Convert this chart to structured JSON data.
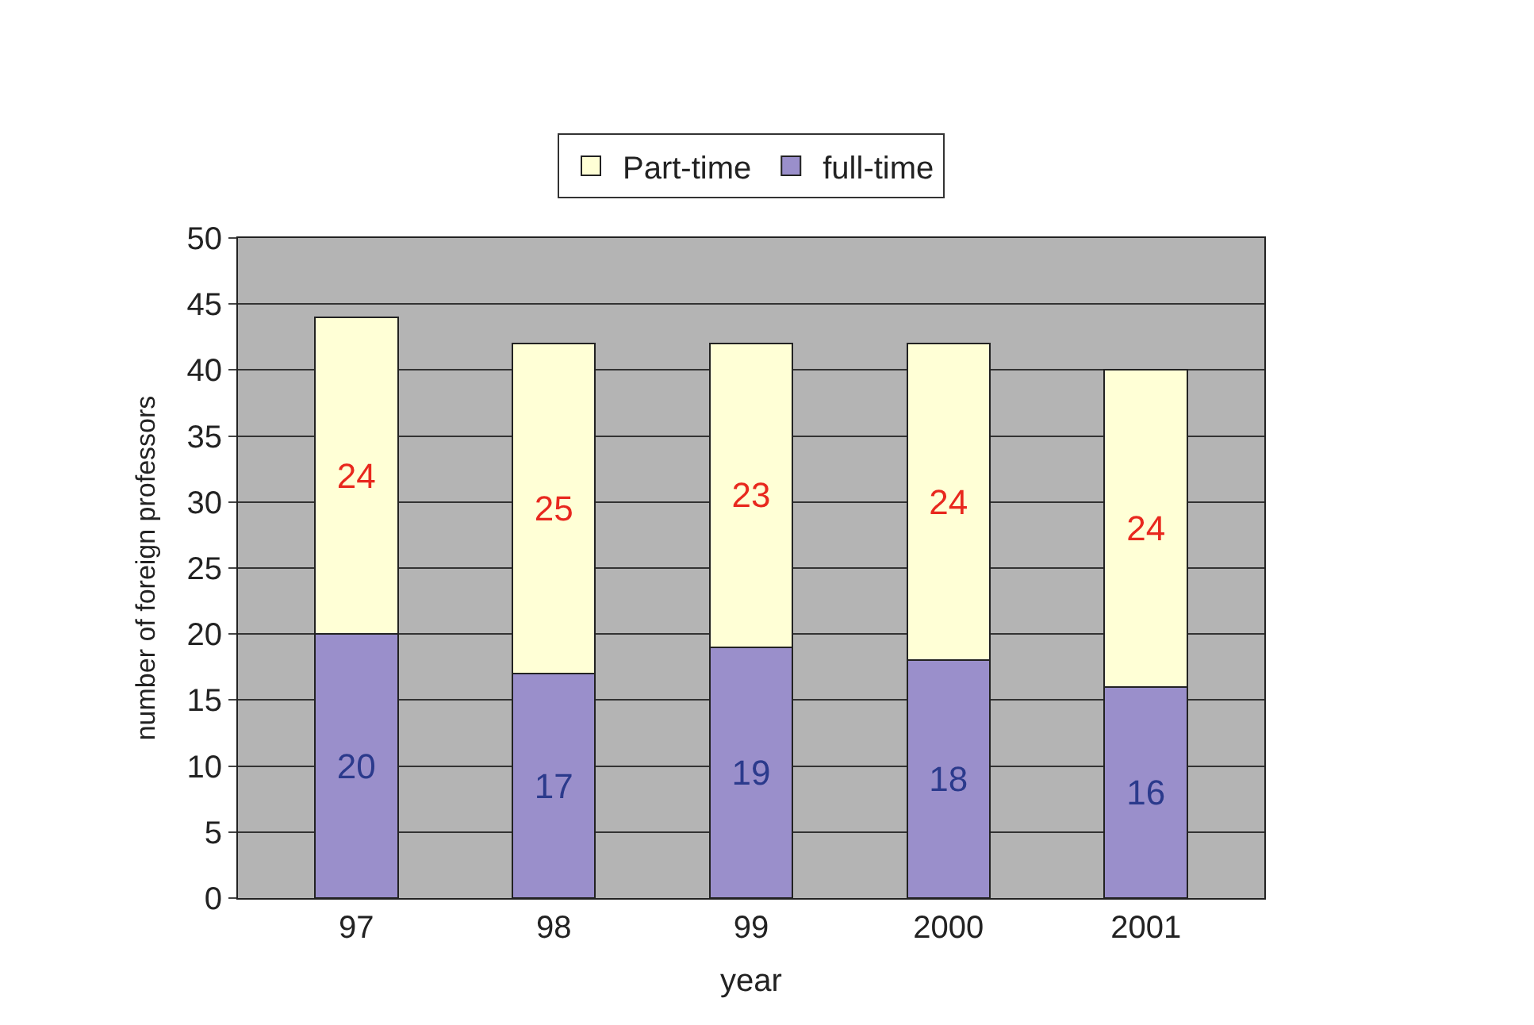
{
  "chart_data": {
    "type": "bar",
    "stacked": true,
    "xlabel": "year",
    "ylabel": "number of foreign professors",
    "categories": [
      "97",
      "98",
      "99",
      "2000",
      "2001"
    ],
    "series": [
      {
        "name": "full-time",
        "color": "#9a8fcb",
        "values": [
          20,
          17,
          19,
          18,
          16
        ]
      },
      {
        "name": "Part-time",
        "color": "#ffffd6",
        "values": [
          24,
          25,
          23,
          24,
          24
        ]
      }
    ],
    "ylim": [
      0,
      50
    ],
    "yticks": [
      0,
      5,
      10,
      15,
      20,
      25,
      30,
      35,
      40,
      45,
      50
    ],
    "grid": "y",
    "legend": "top",
    "data_labels": true
  }
}
